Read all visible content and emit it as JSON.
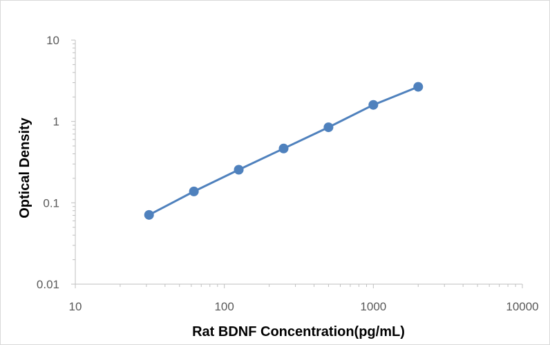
{
  "chart_data": {
    "type": "line",
    "title": "",
    "xlabel": "Rat BDNF Concentration(pg/mL)",
    "ylabel": "Optical Density",
    "x_scale": "log",
    "y_scale": "log",
    "xlim": [
      10,
      10000
    ],
    "ylim": [
      0.01,
      10
    ],
    "x_ticks": [
      "10",
      "100",
      "1000",
      "10000"
    ],
    "y_ticks": [
      "0.01",
      "0.1",
      "1",
      "10"
    ],
    "grid": false,
    "legend": "none",
    "series": [
      {
        "x": [
          31.25,
          62.5,
          125,
          250,
          500,
          1000,
          2000
        ],
        "y": [
          0.071,
          0.138,
          0.255,
          0.465,
          0.848,
          1.598,
          2.665
        ],
        "color": "#4f81bd"
      }
    ],
    "colors": {
      "series": "#4f81bd",
      "axis": "#bfbfbf",
      "tick_text": "#595959"
    }
  }
}
